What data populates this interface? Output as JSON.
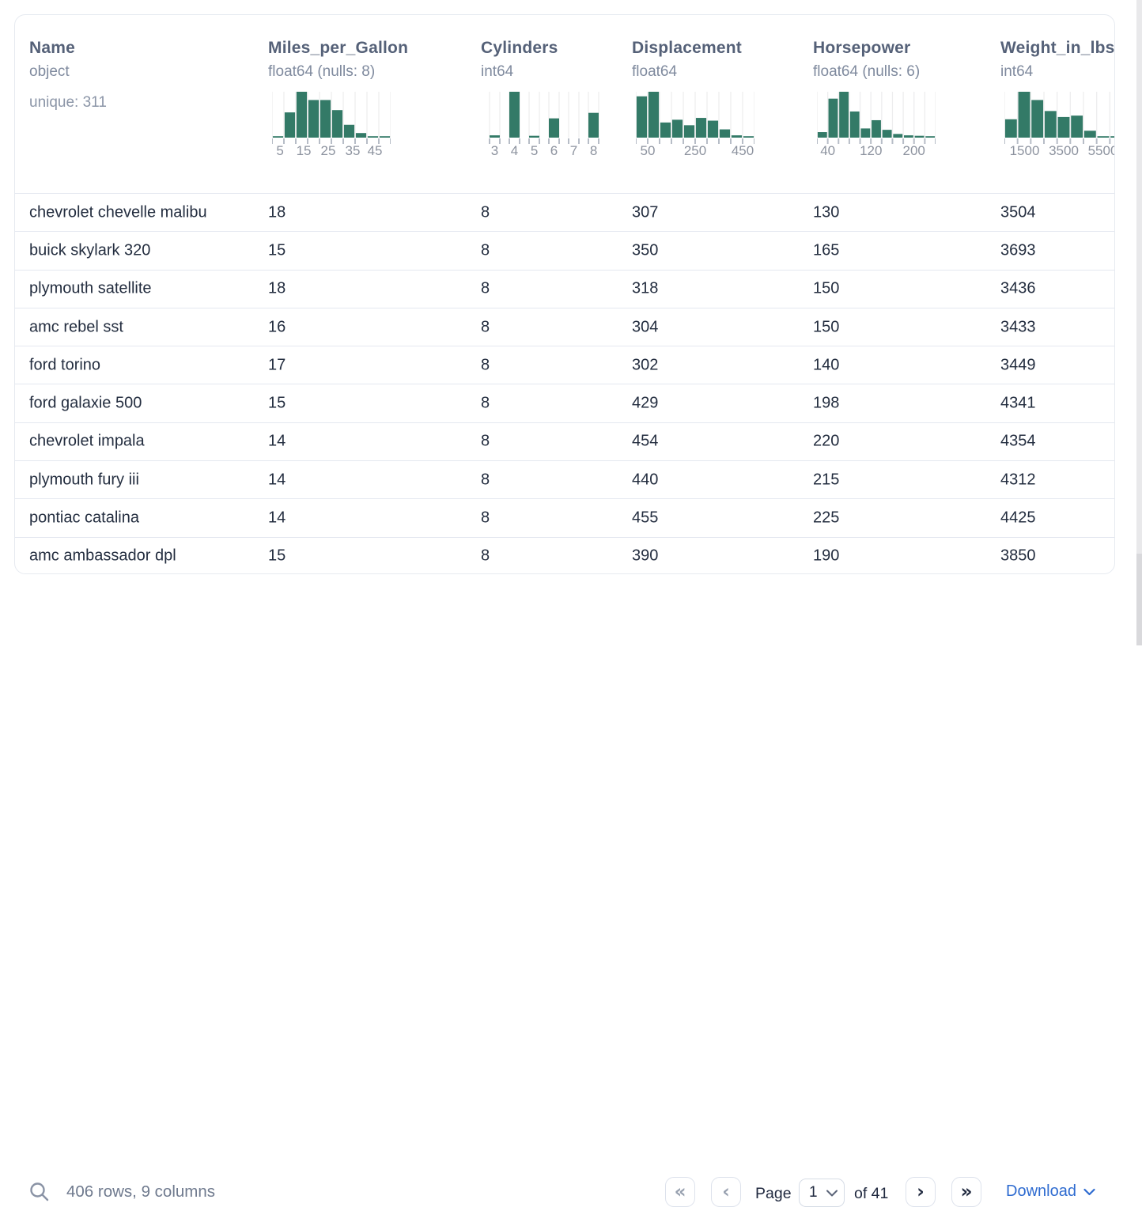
{
  "table": {
    "columns": [
      {
        "name": "Name",
        "dtype": "object",
        "meta": "unique: 311",
        "hist": null
      },
      {
        "name": "Miles_per_Gallon",
        "dtype": "float64 (nulls: 8)",
        "meta": null,
        "hist": {
          "style": "continuous",
          "bars": [
            3,
            55,
            100,
            82,
            82,
            60,
            28,
            10,
            3,
            2
          ],
          "labels": [
            {
              "text": "5",
              "x": 0.067
            },
            {
              "text": "15",
              "x": 0.267
            },
            {
              "text": "25",
              "x": 0.473
            },
            {
              "text": "35",
              "x": 0.68
            },
            {
              "text": "45",
              "x": 0.867
            }
          ]
        }
      },
      {
        "name": "Cylinders",
        "dtype": "int64",
        "meta": null,
        "hist": {
          "style": "discrete",
          "bars": [
            5,
            100,
            4,
            42,
            0,
            54
          ],
          "labels": [
            {
              "text": "3",
              "x": 0.083
            },
            {
              "text": "4",
              "x": 0.25
            },
            {
              "text": "5",
              "x": 0.417
            },
            {
              "text": "6",
              "x": 0.583
            },
            {
              "text": "7",
              "x": 0.75
            },
            {
              "text": "8",
              "x": 0.917
            }
          ]
        }
      },
      {
        "name": "Displacement",
        "dtype": "float64",
        "meta": null,
        "hist": {
          "style": "continuous",
          "bars": [
            90,
            100,
            33,
            39,
            27,
            43,
            37,
            18,
            5,
            2
          ],
          "labels": [
            {
              "text": "50",
              "x": 0.1
            },
            {
              "text": "250",
              "x": 0.5
            },
            {
              "text": "450",
              "x": 0.9
            }
          ]
        }
      },
      {
        "name": "Horsepower",
        "dtype": "float64 (nulls: 6)",
        "meta": null,
        "hist": {
          "style": "continuous",
          "bars": [
            12,
            85,
            100,
            57,
            20,
            38,
            17,
            8,
            5,
            4,
            2
          ],
          "labels": [
            {
              "text": "40",
              "x": 0.091
            },
            {
              "text": "120",
              "x": 0.455
            },
            {
              "text": "200",
              "x": 0.818
            }
          ]
        }
      },
      {
        "name": "Weight_in_lbs",
        "dtype": "int64",
        "meta": null,
        "hist": {
          "style": "continuous",
          "bars": [
            40,
            100,
            82,
            58,
            45,
            48,
            15,
            3,
            2
          ],
          "labels": [
            {
              "text": "1500",
              "x": 0.17
            },
            {
              "text": "3500",
              "x": 0.5
            },
            {
              "text": "5500",
              "x": 0.83
            }
          ]
        }
      }
    ],
    "rows": [
      [
        "chevrolet chevelle malibu",
        "18",
        "8",
        "307",
        "130",
        "3504"
      ],
      [
        "buick skylark 320",
        "15",
        "8",
        "350",
        "165",
        "3693"
      ],
      [
        "plymouth satellite",
        "18",
        "8",
        "318",
        "150",
        "3436"
      ],
      [
        "amc rebel sst",
        "16",
        "8",
        "304",
        "150",
        "3433"
      ],
      [
        "ford torino",
        "17",
        "8",
        "302",
        "140",
        "3449"
      ],
      [
        "ford galaxie 500",
        "15",
        "8",
        "429",
        "198",
        "4341"
      ],
      [
        "chevrolet impala",
        "14",
        "8",
        "454",
        "220",
        "4354"
      ],
      [
        "plymouth fury iii",
        "14",
        "8",
        "440",
        "215",
        "4312"
      ],
      [
        "pontiac catalina",
        "14",
        "8",
        "455",
        "225",
        "4425"
      ],
      [
        "amc ambassador dpl",
        "15",
        "8",
        "390",
        "190",
        "3850"
      ]
    ]
  },
  "chart_data": {
    "type": "bar",
    "note": "column header mini-histograms",
    "histograms": [
      {
        "column": "Miles_per_Gallon",
        "tick_labels": [
          "5",
          "15",
          "25",
          "35",
          "45"
        ],
        "bar_heights_pct": [
          3,
          55,
          100,
          82,
          82,
          60,
          28,
          10,
          3,
          2
        ]
      },
      {
        "column": "Cylinders",
        "tick_labels": [
          "3",
          "4",
          "5",
          "6",
          "7",
          "8"
        ],
        "bar_heights_pct": [
          5,
          100,
          4,
          42,
          0,
          54
        ]
      },
      {
        "column": "Displacement",
        "tick_labels": [
          "50",
          "250",
          "450"
        ],
        "bar_heights_pct": [
          90,
          100,
          33,
          39,
          27,
          43,
          37,
          18,
          5,
          2
        ]
      },
      {
        "column": "Horsepower",
        "tick_labels": [
          "40",
          "120",
          "200"
        ],
        "bar_heights_pct": [
          12,
          85,
          100,
          57,
          20,
          38,
          17,
          8,
          5,
          4,
          2
        ]
      },
      {
        "column": "Weight_in_lbs",
        "tick_labels": [
          "1500",
          "3500",
          "5500"
        ],
        "bar_heights_pct": [
          40,
          100,
          82,
          58,
          45,
          48,
          15,
          3,
          2
        ]
      }
    ]
  },
  "footer": {
    "summary": "406 rows, 9 columns",
    "first_page_glyph": "«",
    "prev_page_glyph": "‹",
    "next_page_glyph": "›",
    "last_page_glyph": "»",
    "page_label": "Page",
    "page_value": "1",
    "of_label": "of 41",
    "download_label": "Download"
  },
  "colors": {
    "histogram_bar": "#337a67",
    "histogram_grid": "#ededee",
    "histogram_tick": "#b7bdc7",
    "histogram_tick_label": "#8d939f",
    "column_name": "#556178",
    "meta_text": "#7f8a9e",
    "row_text": "#232d3f",
    "row_separator": "#e4e8f0",
    "card_border": "#e6eaf0",
    "download_blue": "#2e6bd0",
    "chevron_active": "#20293f",
    "chevron_disabled": "#97a0af"
  }
}
